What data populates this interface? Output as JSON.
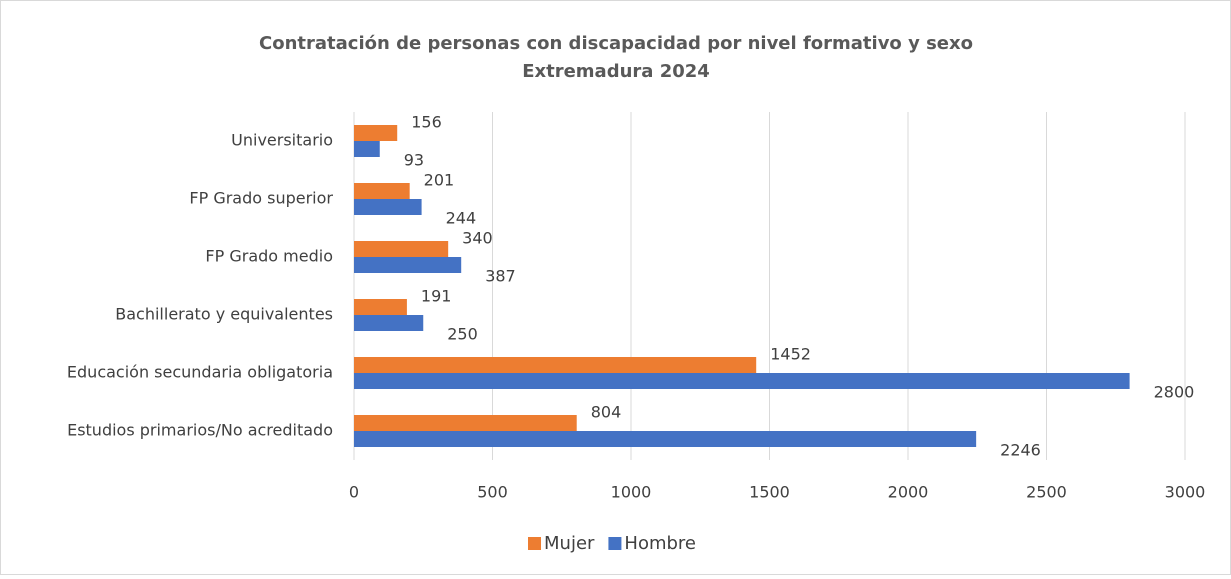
{
  "chart_data": {
    "type": "hbar",
    "title": "Contratación de personas con discapacidad por nivel formativo y sexo",
    "subtitle": "Extremadura 2024",
    "categories": [
      "Universitario",
      "FP Grado superior",
      "FP Grado medio",
      "Bachillerato y equivalentes",
      "Educación secundaria obligatoria",
      "Estudios primarios/No acreditado"
    ],
    "series": [
      {
        "name": "Mujer",
        "color": "#ed7d31",
        "values": [
          156,
          201,
          340,
          191,
          1452,
          804
        ]
      },
      {
        "name": "Hombre",
        "color": "#4472c4",
        "values": [
          93,
          244,
          387,
          250,
          2800,
          2246
        ]
      }
    ],
    "xlim": [
      0,
      3000
    ],
    "xticks": [
      0,
      500,
      1000,
      1500,
      2000,
      2500,
      3000
    ],
    "grid": true,
    "legend": "bottom"
  }
}
